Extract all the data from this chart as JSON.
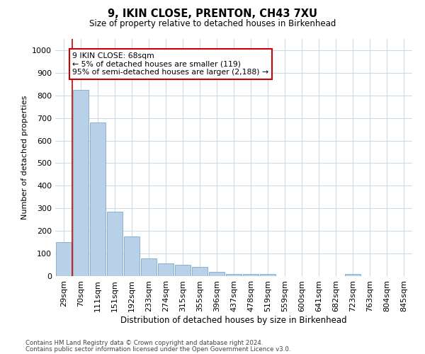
{
  "title1": "9, IKIN CLOSE, PRENTON, CH43 7XU",
  "title2": "Size of property relative to detached houses in Birkenhead",
  "xlabel": "Distribution of detached houses by size in Birkenhead",
  "ylabel": "Number of detached properties",
  "categories": [
    "29sqm",
    "70sqm",
    "111sqm",
    "151sqm",
    "192sqm",
    "233sqm",
    "274sqm",
    "315sqm",
    "355sqm",
    "396sqm",
    "437sqm",
    "478sqm",
    "519sqm",
    "559sqm",
    "600sqm",
    "641sqm",
    "682sqm",
    "723sqm",
    "763sqm",
    "804sqm",
    "845sqm"
  ],
  "values": [
    150,
    825,
    680,
    285,
    175,
    78,
    55,
    50,
    40,
    20,
    10,
    10,
    10,
    0,
    0,
    0,
    0,
    10,
    0,
    0,
    0
  ],
  "bar_color": "#b8d0e8",
  "bar_edgecolor": "#7aaacb",
  "annotation_text": "9 IKIN CLOSE: 68sqm\n← 5% of detached houses are smaller (119)\n95% of semi-detached houses are larger (2,188) →",
  "annotation_box_color": "#ffffff",
  "annotation_box_edgecolor": "#cc0000",
  "vline_color": "#cc0000",
  "ylim": [
    0,
    1050
  ],
  "yticks": [
    0,
    100,
    200,
    300,
    400,
    500,
    600,
    700,
    800,
    900,
    1000
  ],
  "footer1": "Contains HM Land Registry data © Crown copyright and database right 2024.",
  "footer2": "Contains public sector information licensed under the Open Government Licence v3.0.",
  "background_color": "#ffffff",
  "grid_color": "#c8d8e8"
}
